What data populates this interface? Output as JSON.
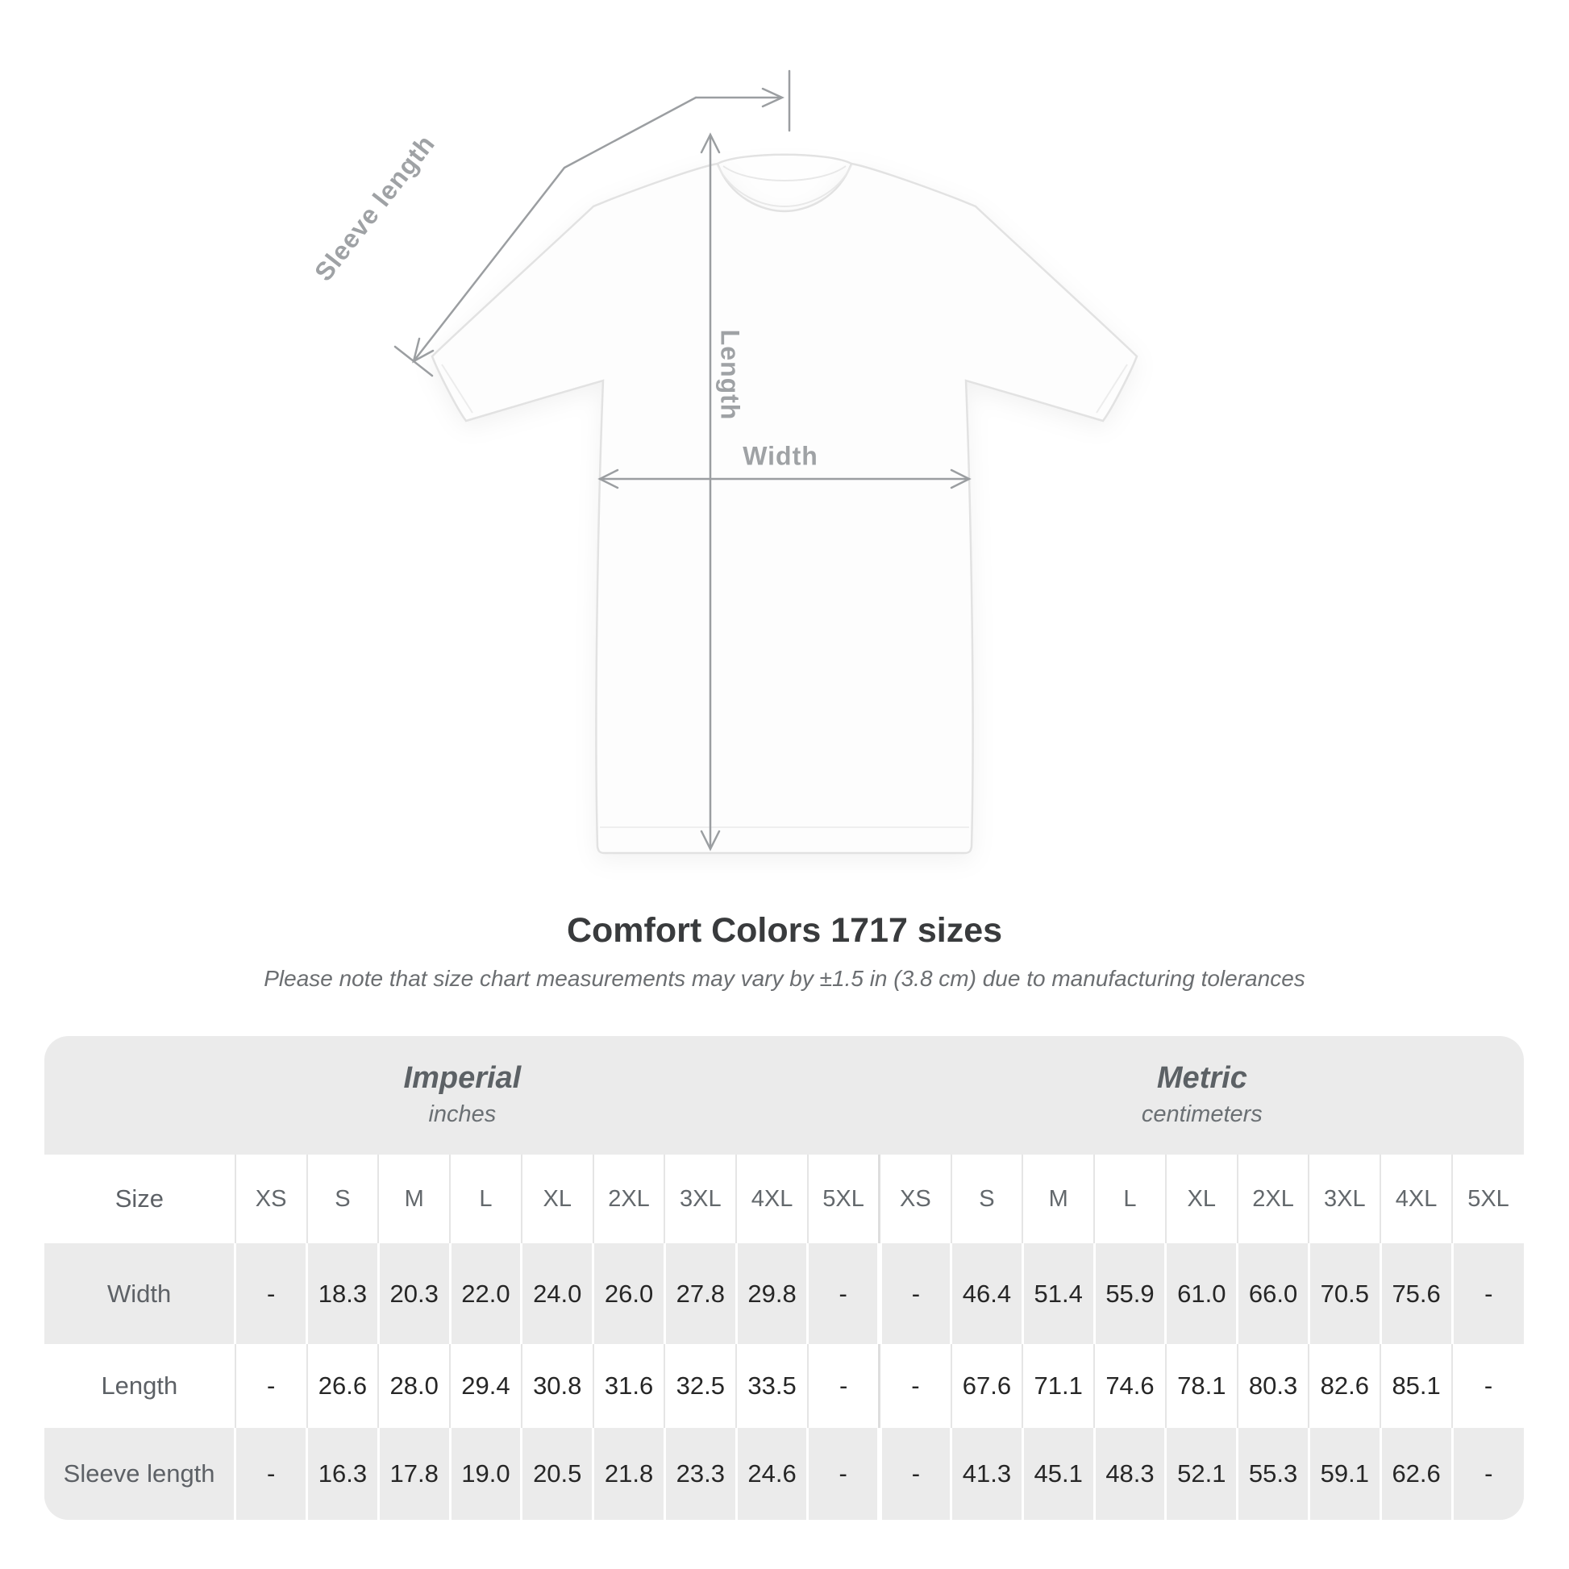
{
  "title": "Comfort Colors 1717 sizes",
  "subtitle": "Please note that size chart measurements may vary by ±1.5 in (3.8 cm) due to manufacturing tolerances",
  "diagram": {
    "labels": {
      "sleeve": "Sleeve length",
      "length": "Length",
      "width": "Width"
    },
    "annotation_color": "#9b9ea1",
    "shirt_fill": "#fdfdfd",
    "shirt_outline": "#e2e2e2"
  },
  "chart_data": {
    "type": "table",
    "title": "Comfort Colors 1717 sizes",
    "unit_groups": [
      {
        "label": "Imperial",
        "sublabel": "inches"
      },
      {
        "label": "Metric",
        "sublabel": "centimeters"
      }
    ],
    "size_header": "Size",
    "sizes": [
      "XS",
      "S",
      "M",
      "L",
      "XL",
      "2XL",
      "3XL",
      "4XL",
      "5XL"
    ],
    "rows": [
      {
        "label": "Width",
        "imperial": [
          "-",
          "18.3",
          "20.3",
          "22.0",
          "24.0",
          "26.0",
          "27.8",
          "29.8",
          "-"
        ],
        "metric": [
          "-",
          "46.4",
          "51.4",
          "55.9",
          "61.0",
          "66.0",
          "70.5",
          "75.6",
          "-"
        ]
      },
      {
        "label": "Length",
        "imperial": [
          "-",
          "26.6",
          "28.0",
          "29.4",
          "30.8",
          "31.6",
          "32.5",
          "33.5",
          "-"
        ],
        "metric": [
          "-",
          "67.6",
          "71.1",
          "74.6",
          "78.1",
          "80.3",
          "82.6",
          "85.1",
          "-"
        ]
      },
      {
        "label": "Sleeve length",
        "imperial": [
          "-",
          "16.3",
          "17.8",
          "19.0",
          "20.5",
          "21.8",
          "23.3",
          "24.6",
          "-"
        ],
        "metric": [
          "-",
          "41.3",
          "45.1",
          "48.3",
          "52.1",
          "55.3",
          "59.1",
          "62.6",
          "-"
        ]
      }
    ],
    "colors": {
      "table_bg": "#ebebeb",
      "row_alt": "#ffffff",
      "label_text": "#5d6166",
      "value_text": "#262626",
      "title_text": "#393b3d"
    }
  }
}
